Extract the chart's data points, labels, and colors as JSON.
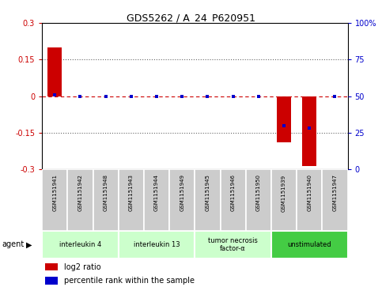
{
  "title": "GDS5262 / A_24_P620951",
  "samples": [
    "GSM1151941",
    "GSM1151942",
    "GSM1151948",
    "GSM1151943",
    "GSM1151944",
    "GSM1151949",
    "GSM1151945",
    "GSM1151946",
    "GSM1151950",
    "GSM1151939",
    "GSM1151940",
    "GSM1151947"
  ],
  "log2_ratio": [
    0.2,
    0.0,
    0.0,
    0.0,
    0.0,
    0.0,
    0.0,
    0.0,
    0.0,
    -0.19,
    -0.285,
    0.0
  ],
  "percentile_rank": [
    51.0,
    50.0,
    50.0,
    50.0,
    50.0,
    50.0,
    50.0,
    50.0,
    50.0,
    30.0,
    28.0,
    50.0
  ],
  "ylim_left": [
    -0.3,
    0.3
  ],
  "ylim_right": [
    0,
    100
  ],
  "yticks_left": [
    -0.3,
    -0.15,
    0.0,
    0.15,
    0.3
  ],
  "ytick_labels_left": [
    "-0.3",
    "-0.15",
    "0",
    "0.15",
    "0.3"
  ],
  "yticks_right": [
    0,
    25,
    50,
    75,
    100
  ],
  "ytick_labels_right": [
    "0",
    "25",
    "50",
    "75",
    "100%"
  ],
  "groups": [
    {
      "label": "interleukin 4",
      "start": 0,
      "end": 2,
      "color": "#ccffcc"
    },
    {
      "label": "interleukin 13",
      "start": 3,
      "end": 5,
      "color": "#ccffcc"
    },
    {
      "label": "tumor necrosis\nfactor-α",
      "start": 6,
      "end": 8,
      "color": "#ccffcc"
    },
    {
      "label": "unstimulated",
      "start": 9,
      "end": 11,
      "color": "#44cc44"
    }
  ],
  "bar_color": "#cc0000",
  "percentile_color": "#0000cc",
  "zero_line_color": "#cc0000",
  "dotted_line_color": "#666666",
  "background_color": "#ffffff",
  "sample_box_color": "#cccccc",
  "legend_log2": "log2 ratio",
  "legend_pct": "percentile rank within the sample"
}
